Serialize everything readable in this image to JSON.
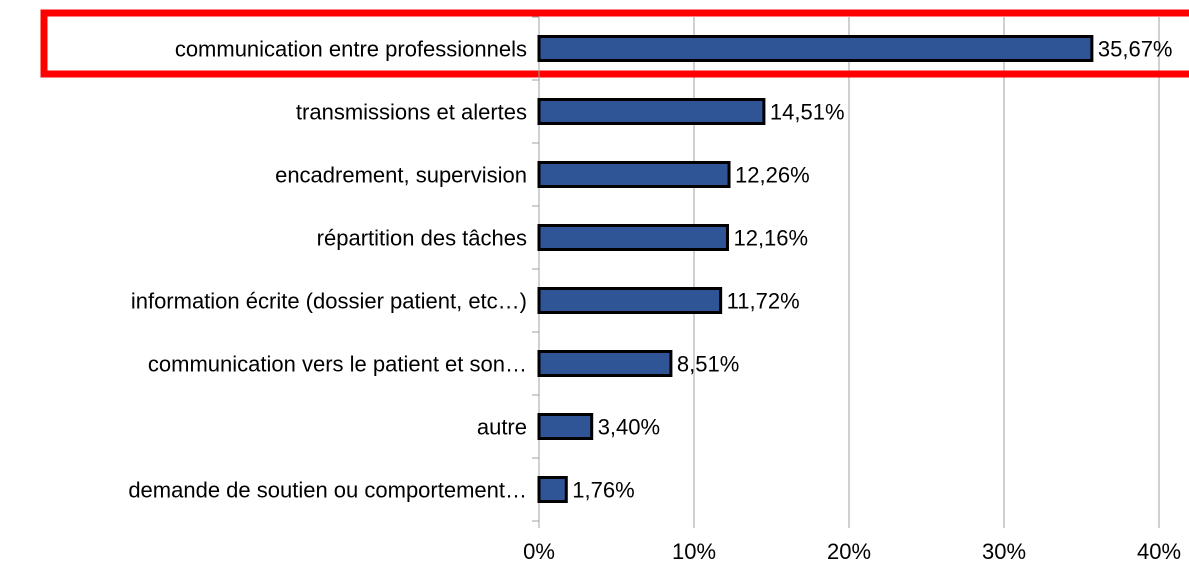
{
  "chart_data": {
    "type": "barh",
    "categories": [
      "communication entre professionnels",
      "transmissions et alertes",
      "encadrement, supervision",
      "répartition des tâches",
      "information écrite (dossier patient, etc…)",
      "communication vers le patient et son…",
      "autre",
      "demande de soutien ou comportement…"
    ],
    "values": [
      35.67,
      14.51,
      12.26,
      12.16,
      11.72,
      8.51,
      3.4,
      1.76
    ],
    "value_labels": [
      "35,67%",
      "14,51%",
      "12,26%",
      "12,16%",
      "11,72%",
      "8,51%",
      "3,40%",
      "1,76%"
    ],
    "color": "#2f5597",
    "xlim": [
      0,
      40
    ],
    "xticks": [
      {
        "value": 0,
        "label": "0%"
      },
      {
        "value": 10,
        "label": "10%"
      },
      {
        "value": 20,
        "label": "20%"
      },
      {
        "value": 30,
        "label": "30%"
      },
      {
        "value": 40,
        "label": "40%"
      }
    ],
    "grid": true
  }
}
